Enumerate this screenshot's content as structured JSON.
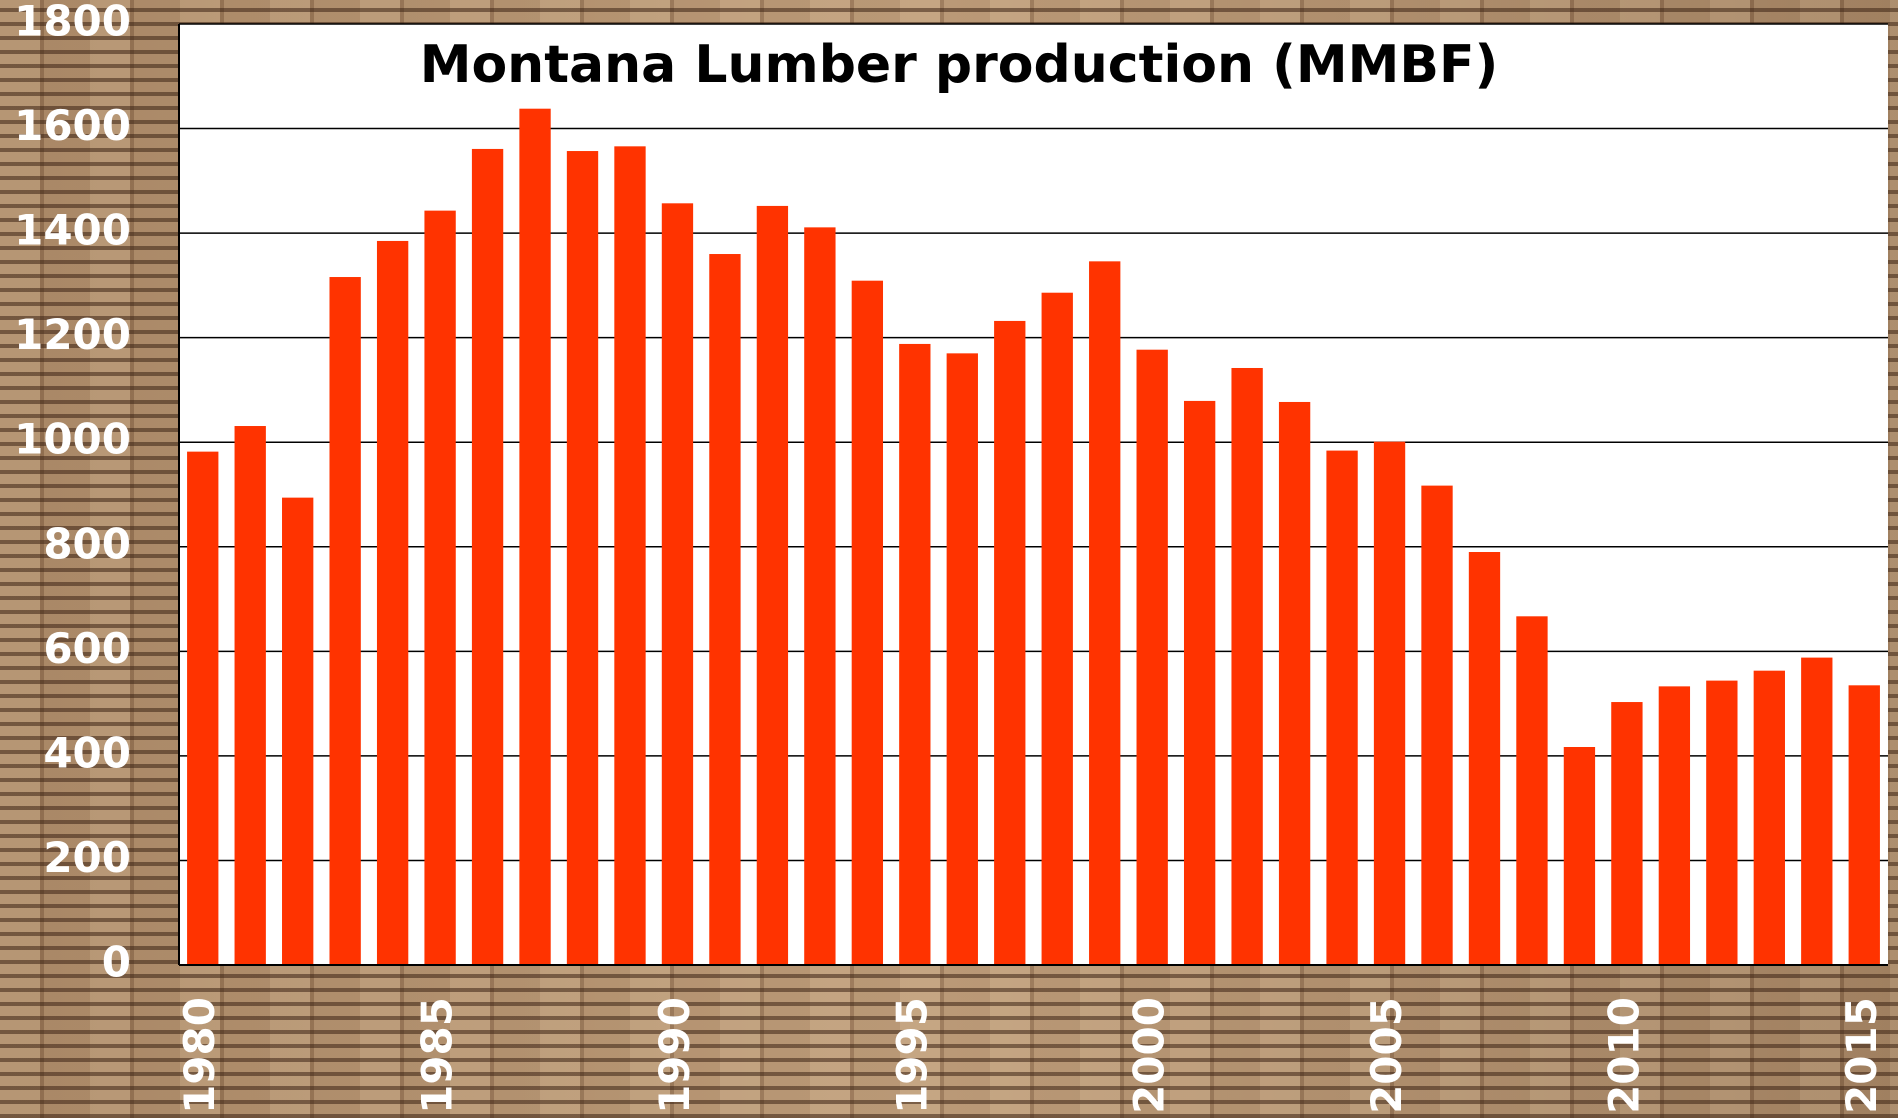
{
  "chart_data": {
    "type": "bar",
    "title": "Montana Lumber production (MMBF)",
    "categories": [
      "1980",
      null,
      null,
      null,
      null,
      "1985",
      null,
      null,
      null,
      null,
      "1990",
      null,
      null,
      null,
      null,
      "1995",
      null,
      null,
      null,
      null,
      "2000",
      null,
      null,
      null,
      null,
      "2005",
      null,
      null,
      null,
      null,
      "2010",
      null,
      null,
      null,
      null,
      "2015"
    ],
    "values": [
      982,
      1031,
      894,
      1316,
      1385,
      1443,
      1561,
      1638,
      1557,
      1566,
      1457,
      1360,
      1452,
      1411,
      1309,
      1188,
      1170,
      1232,
      1286,
      1346,
      1177,
      1079,
      1142,
      1077,
      984,
      1001,
      917,
      790,
      667,
      417,
      503,
      533,
      544,
      563,
      588,
      535
    ],
    "color": "#ff3300",
    "ylim": [
      0,
      1800
    ],
    "yticks": [
      0,
      200,
      400,
      600,
      800,
      1000,
      1200,
      1400,
      1600,
      1800
    ],
    "grid": true
  }
}
